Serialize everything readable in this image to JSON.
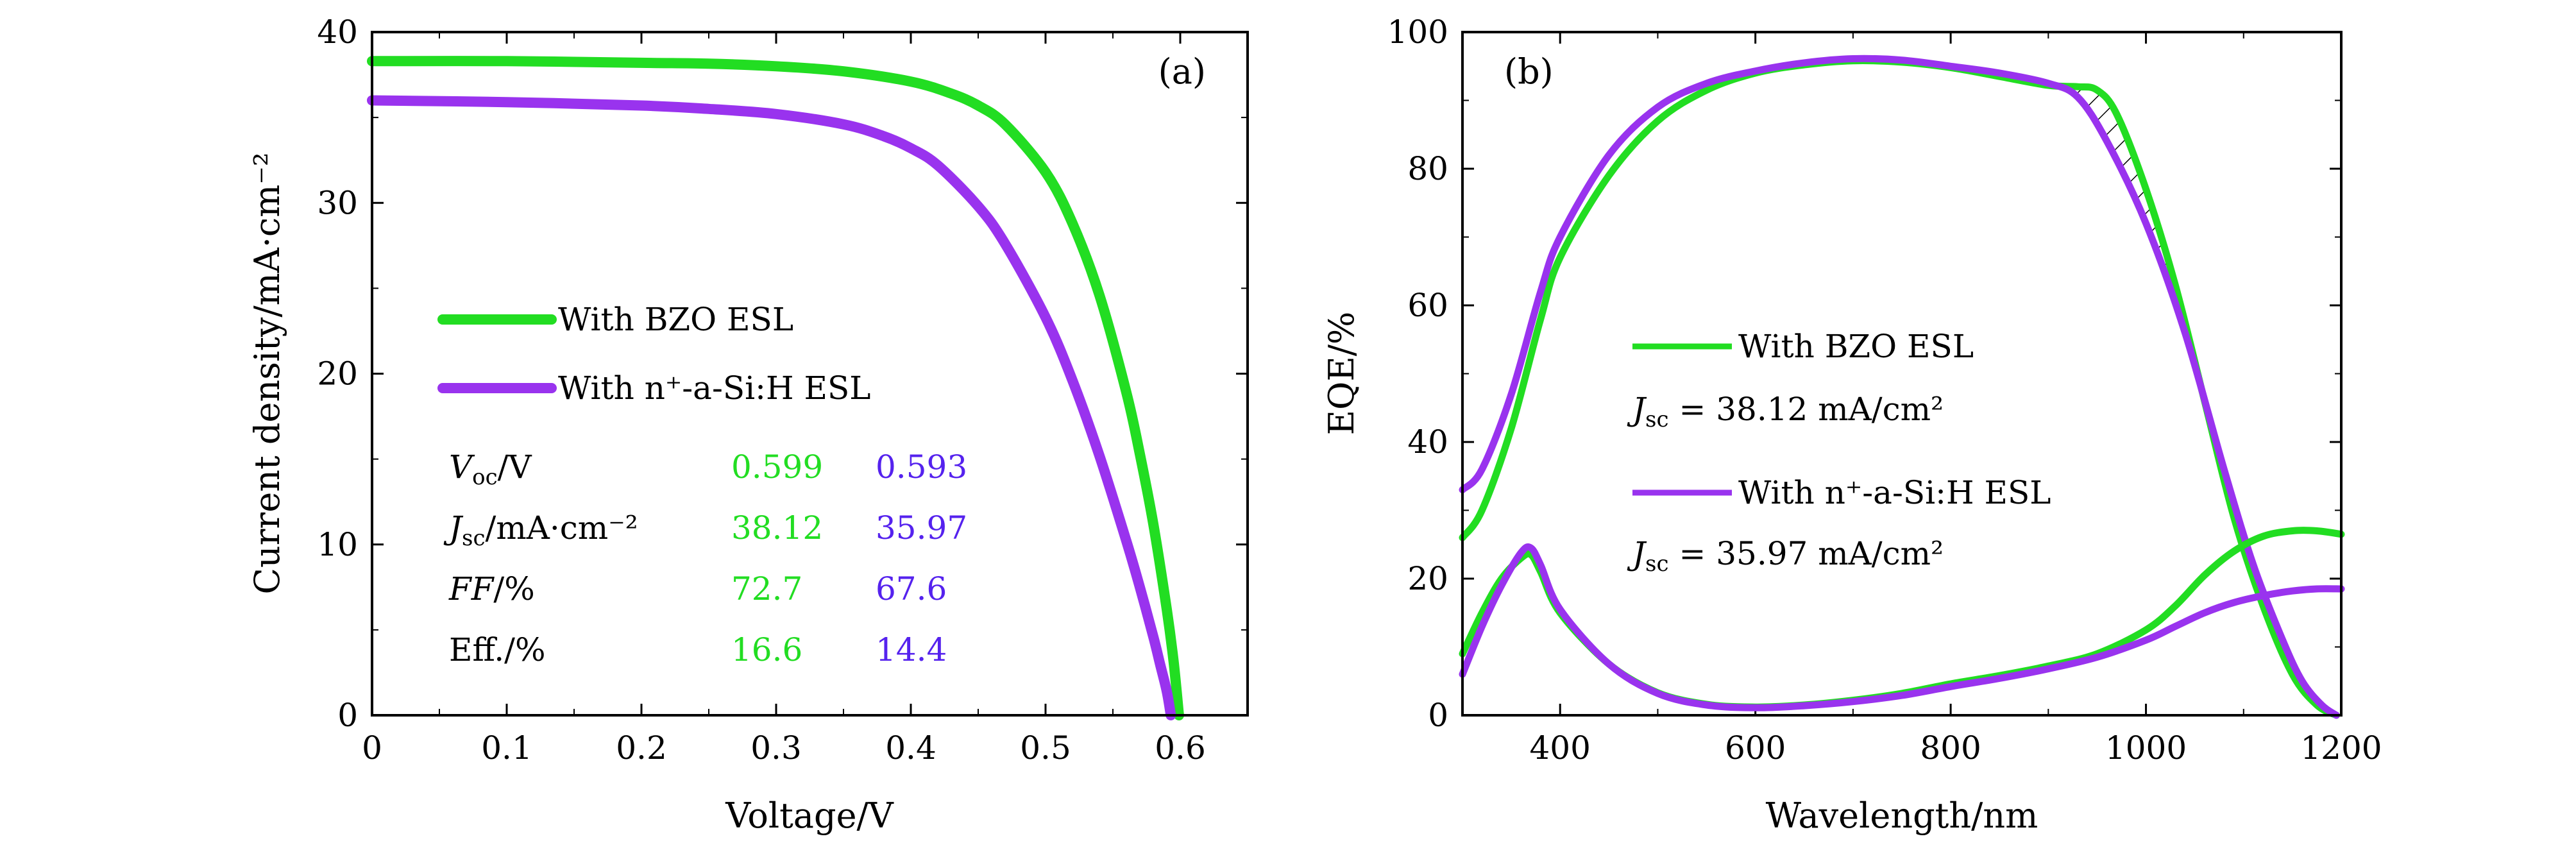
{
  "colors": {
    "bzo": "#22dd22",
    "nasi": "#9933ee",
    "purple_text": "#5522ee",
    "axis": "#000000"
  },
  "chart_data": [
    {
      "type": "line",
      "panel_label": "(a)",
      "title": "",
      "xlabel": "Voltage/V",
      "ylabel": "Current density/mA·cm⁻²",
      "xlim": [
        0,
        0.65
      ],
      "ylim": [
        0,
        40
      ],
      "xticks": [
        0,
        0.1,
        0.2,
        0.3,
        0.4,
        0.5,
        0.6
      ],
      "xtick_labels": [
        "0",
        "0.1",
        "0.2",
        "0.3",
        "0.4",
        "0.5",
        "0.6"
      ],
      "yticks": [
        0,
        10,
        20,
        30,
        40
      ],
      "ytick_labels": [
        "0",
        "10",
        "20",
        "30",
        "40"
      ],
      "legend": {
        "placement": "center-left",
        "entries": [
          "With BZO ESL",
          "With n⁺-a-Si:H ESL"
        ]
      },
      "series": [
        {
          "name": "With BZO ESL",
          "color": "bzo",
          "x": [
            0,
            0.1,
            0.2,
            0.25,
            0.3,
            0.35,
            0.4,
            0.43,
            0.45,
            0.47,
            0.5,
            0.52,
            0.54,
            0.56,
            0.57,
            0.58,
            0.59,
            0.595,
            0.599
          ],
          "y": [
            38.3,
            38.3,
            38.2,
            38.15,
            38.0,
            37.7,
            37.1,
            36.4,
            35.7,
            34.6,
            31.8,
            28.8,
            24.6,
            18.9,
            15.3,
            11.2,
            6.2,
            3.2,
            0
          ]
        },
        {
          "name": "With n⁺-a-Si:H ESL",
          "color": "nasi",
          "x": [
            0,
            0.1,
            0.2,
            0.25,
            0.3,
            0.35,
            0.38,
            0.4,
            0.42,
            0.45,
            0.47,
            0.5,
            0.52,
            0.54,
            0.56,
            0.57,
            0.58,
            0.585,
            0.59,
            0.593
          ],
          "y": [
            36.0,
            35.9,
            35.7,
            35.5,
            35.2,
            34.6,
            33.9,
            33.2,
            32.2,
            29.8,
            27.6,
            23.3,
            19.6,
            15.2,
            10.2,
            7.5,
            4.6,
            3.0,
            1.4,
            0
          ]
        }
      ],
      "table": {
        "rows": [
          {
            "label_main": "V",
            "label_sub": "oc",
            "label_rest": "/V",
            "bzo": "0.599",
            "nasi": "0.593"
          },
          {
            "label_main": "J",
            "label_sub": "sc",
            "label_rest": "/mA·cm⁻²",
            "bzo": "38.12",
            "nasi": "35.97"
          },
          {
            "label_main": "FF",
            "label_sub": "",
            "label_rest": "/%",
            "bzo": "72.7",
            "nasi": "67.6"
          },
          {
            "label_main": "Eff.",
            "label_sub": "",
            "label_rest": "/%",
            "bzo": "16.6",
            "nasi": "14.4"
          }
        ]
      }
    },
    {
      "type": "line",
      "panel_label": "(b)",
      "title": "",
      "xlabel": "Wavelength/nm",
      "ylabel": "EQE/%",
      "xlim": [
        300,
        1200
      ],
      "ylim": [
        0,
        100
      ],
      "xticks": [
        400,
        600,
        800,
        1000,
        1200
      ],
      "xtick_labels": [
        "400",
        "600",
        "800",
        "1000",
        "1200"
      ],
      "yticks": [
        0,
        20,
        40,
        60,
        80,
        100
      ],
      "ytick_labels": [
        "0",
        "20",
        "40",
        "60",
        "80",
        "100"
      ],
      "legend": {
        "placement": "center",
        "entries": [
          "With BZO ESL",
          "With n⁺-a-Si:H ESL"
        ],
        "jsc_texts": [
          {
            "main": "J",
            "sub": "sc",
            "rest": " = 38.12 mA/cm²"
          },
          {
            "main": "J",
            "sub": "sc",
            "rest": " = 35.97 mA/cm²"
          }
        ]
      },
      "annotations": [
        "hatched region between curves from ~930 nm to ~1180 nm"
      ],
      "series": [
        {
          "name": "With BZO ESL",
          "color": "bzo",
          "x": [
            300,
            320,
            350,
            380,
            400,
            450,
            500,
            550,
            600,
            650,
            700,
            750,
            800,
            850,
            900,
            930,
            950,
            970,
            1000,
            1030,
            1060,
            1090,
            1120,
            1150,
            1175,
            1195
          ],
          "y": [
            26,
            30,
            42,
            58,
            67,
            79,
            87,
            91.5,
            94,
            95.2,
            95.8,
            95.6,
            94.8,
            93.5,
            92.2,
            92,
            91.5,
            88,
            77,
            63,
            46,
            29,
            16,
            6,
            1.5,
            0
          ]
        },
        {
          "name": "With n⁺-a-Si:H ESL",
          "color": "nasi",
          "x": [
            300,
            320,
            350,
            380,
            400,
            450,
            500,
            550,
            600,
            650,
            700,
            750,
            800,
            850,
            900,
            930,
            960,
            1000,
            1040,
            1080,
            1110,
            1140,
            1160,
            1180,
            1195
          ],
          "y": [
            33,
            36,
            47,
            62,
            70,
            82,
            89,
            92.5,
            94.3,
            95.5,
            96.1,
            95.9,
            95,
            94,
            92.5,
            90.5,
            84,
            72,
            56,
            36,
            22,
            11,
            5,
            1.5,
            0
          ]
        },
        {
          "name": "With BZO ESL (reflectance)",
          "color": "bzo",
          "x": [
            300,
            320,
            340,
            360,
            370,
            380,
            400,
            450,
            500,
            550,
            600,
            650,
            700,
            750,
            800,
            850,
            900,
            950,
            1000,
            1030,
            1060,
            1090,
            1120,
            1150,
            1175,
            1200
          ],
          "y": [
            9,
            15,
            20,
            23,
            23.5,
            21,
            15,
            7.5,
            3.3,
            1.6,
            1.2,
            1.5,
            2.2,
            3.2,
            4.6,
            5.8,
            7.2,
            9,
            12.5,
            16,
            20.5,
            24,
            26.2,
            27,
            27,
            26.5
          ]
        },
        {
          "name": "With n⁺-a-Si:H ESL (reflectance)",
          "color": "nasi",
          "x": [
            300,
            320,
            340,
            360,
            370,
            380,
            400,
            450,
            500,
            550,
            600,
            650,
            700,
            750,
            800,
            850,
            900,
            950,
            1000,
            1030,
            1060,
            1090,
            1120,
            1150,
            1175,
            1200
          ],
          "y": [
            6,
            13,
            19,
            23.8,
            24.5,
            22,
            15.5,
            7.5,
            3.2,
            1.5,
            1.1,
            1.4,
            2.0,
            2.9,
            4.2,
            5.4,
            6.8,
            8.5,
            11,
            13,
            15,
            16.5,
            17.5,
            18.2,
            18.5,
            18.5
          ]
        }
      ]
    }
  ]
}
